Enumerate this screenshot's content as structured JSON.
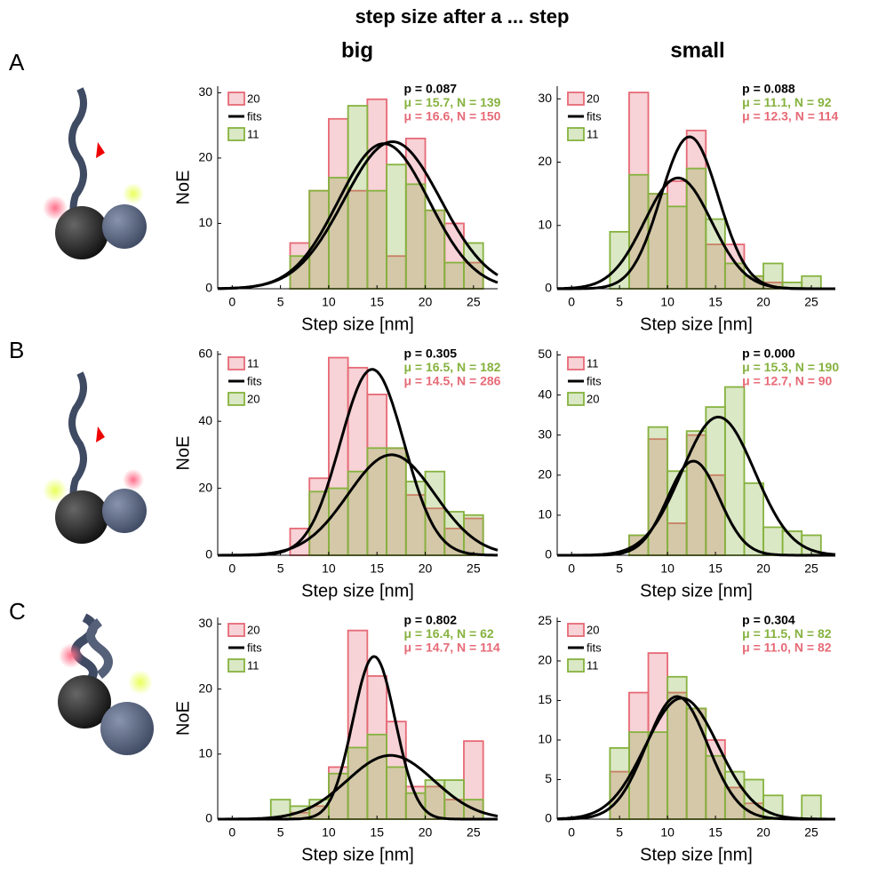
{
  "figure": {
    "title": "step size after a ... step",
    "columns": [
      "big",
      "small"
    ],
    "panels": [
      "A",
      "B",
      "C"
    ]
  },
  "chart_data": [
    {
      "type": "histogram",
      "xlabel": "Step size [nm]",
      "ylabel": "NoE",
      "bins": [
        4,
        6,
        8,
        10,
        12,
        14,
        16,
        18,
        20,
        22,
        24,
        26
      ],
      "xlim": [
        -1.5,
        27.5
      ],
      "xticks": [
        0,
        5,
        10,
        15,
        20,
        25
      ],
      "ylim": [
        0,
        31
      ],
      "yticks": [
        0,
        10,
        20,
        30
      ],
      "series": [
        {
          "name": "20",
          "color": "#e66a76",
          "values": [
            0,
            7,
            15,
            26,
            15,
            29,
            5,
            23,
            12,
            10,
            4
          ]
        },
        {
          "name": "11",
          "color": "#86b23f",
          "values": [
            0,
            5,
            15,
            17,
            28,
            15,
            19,
            16,
            12,
            4,
            7
          ]
        }
      ],
      "fit_label": "fits",
      "fit_color": "#000000",
      "fits": [
        {
          "peak": 22.5,
          "mean": 16.6,
          "sd": 5.0
        },
        {
          "peak": 22.2,
          "mean": 15.7,
          "sd": 4.7
        }
      ],
      "annotations": [
        {
          "text": "p = 0.087",
          "color": "#000000"
        },
        {
          "text": "μ = 15.7, N = 139",
          "color": "#86b23f"
        },
        {
          "text": "μ = 16.6, N = 150",
          "color": "#e66a76"
        }
      ]
    },
    {
      "type": "histogram",
      "xlabel": "Step size [nm]",
      "bins": [
        4,
        6,
        8,
        10,
        12,
        14,
        16,
        18,
        20,
        22,
        24,
        26
      ],
      "xlim": [
        -1.5,
        27.5
      ],
      "xticks": [
        0,
        5,
        10,
        15,
        20,
        25
      ],
      "ylim": [
        0,
        32
      ],
      "yticks": [
        0,
        10,
        20,
        30
      ],
      "series": [
        {
          "name": "20",
          "color": "#e66a76",
          "values": [
            0,
            31,
            15,
            17,
            25,
            7,
            7,
            2,
            1,
            0,
            0
          ]
        },
        {
          "name": "11",
          "color": "#86b23f",
          "values": [
            9,
            18,
            15,
            13,
            19,
            11,
            4,
            2,
            4,
            1,
            2
          ]
        }
      ],
      "fit_label": "fits",
      "fit_color": "#000000",
      "fits": [
        {
          "peak": 24,
          "mean": 12.3,
          "sd": 3.0
        },
        {
          "peak": 17.5,
          "mean": 11.1,
          "sd": 3.5
        }
      ],
      "annotations": [
        {
          "text": "p = 0.088",
          "color": "#000000"
        },
        {
          "text": "μ = 11.1, N = 92",
          "color": "#86b23f"
        },
        {
          "text": "μ = 12.3, N = 114",
          "color": "#e66a76"
        }
      ]
    },
    {
      "type": "histogram",
      "xlabel": "Step size [nm]",
      "ylabel": "NoE",
      "bins": [
        4,
        6,
        8,
        10,
        12,
        14,
        16,
        18,
        20,
        22,
        24,
        26
      ],
      "xlim": [
        -1.5,
        27.5
      ],
      "xticks": [
        0,
        5,
        10,
        15,
        20,
        25
      ],
      "ylim": [
        0,
        61
      ],
      "yticks": [
        0,
        20,
        40,
        60
      ],
      "series": [
        {
          "name": "11",
          "color": "#e66a76",
          "values": [
            0,
            8,
            23,
            59,
            56,
            48,
            32,
            18,
            14,
            8,
            11
          ]
        },
        {
          "name": "20",
          "color": "#86b23f",
          "values": [
            0,
            0,
            19,
            20,
            25,
            32,
            32,
            22,
            25,
            13,
            12
          ]
        }
      ],
      "fit_label": "fits",
      "fit_color": "#000000",
      "fits": [
        {
          "peak": 55.5,
          "mean": 14.5,
          "sd": 3.3
        },
        {
          "peak": 30,
          "mean": 16.5,
          "sd": 4.5
        }
      ],
      "annotations": [
        {
          "text": "p = 0.305",
          "color": "#000000"
        },
        {
          "text": "μ = 16.5, N = 182",
          "color": "#86b23f"
        },
        {
          "text": "μ = 14.5, N = 286",
          "color": "#e66a76"
        }
      ]
    },
    {
      "type": "histogram",
      "xlabel": "Step size [nm]",
      "bins": [
        4,
        6,
        8,
        10,
        12,
        14,
        16,
        18,
        20,
        22,
        24,
        26
      ],
      "xlim": [
        -1.5,
        27.5
      ],
      "xticks": [
        0,
        5,
        10,
        15,
        20,
        25
      ],
      "ylim": [
        0,
        51
      ],
      "yticks": [
        0,
        10,
        20,
        30,
        40,
        50
      ],
      "series": [
        {
          "name": "11",
          "color": "#e66a76",
          "values": [
            0,
            5,
            29,
            8,
            30,
            20,
            0,
            0,
            0,
            0,
            0
          ]
        },
        {
          "name": "20",
          "color": "#86b23f",
          "values": [
            0,
            5,
            32,
            21,
            31,
            37,
            42,
            18,
            7,
            6,
            5
          ]
        }
      ],
      "fit_label": "fits",
      "fit_color": "#000000",
      "fits": [
        {
          "peak": 34.5,
          "mean": 15.3,
          "sd": 3.8
        },
        {
          "peak": 23.5,
          "mean": 12.7,
          "sd": 2.7
        }
      ],
      "annotations": [
        {
          "text": "p = 0.000",
          "color": "#000000"
        },
        {
          "text": "μ = 15.3, N = 190",
          "color": "#86b23f"
        },
        {
          "text": "μ = 12.7, N = 90",
          "color": "#e66a76"
        }
      ]
    },
    {
      "type": "histogram",
      "xlabel": "Step size [nm]",
      "ylabel": "NoE",
      "bins": [
        4,
        6,
        8,
        10,
        12,
        14,
        16,
        18,
        20,
        22,
        24,
        26
      ],
      "xlim": [
        -1.5,
        27.5
      ],
      "xticks": [
        0,
        5,
        10,
        15,
        20,
        25
      ],
      "ylim": [
        0,
        31
      ],
      "yticks": [
        0,
        10,
        20,
        30
      ],
      "series": [
        {
          "name": "20",
          "color": "#e66a76",
          "values": [
            0,
            1,
            2,
            8,
            29,
            22,
            15,
            5,
            5,
            3,
            12
          ]
        },
        {
          "name": "11",
          "color": "#86b23f",
          "values": [
            3,
            2,
            3,
            7,
            11,
            13,
            8,
            4,
            6,
            6,
            3
          ]
        }
      ],
      "fit_label": "fits",
      "fit_color": "#000000",
      "fits": [
        {
          "peak": 25,
          "mean": 14.7,
          "sd": 2.2
        },
        {
          "peak": 9.8,
          "mean": 16.4,
          "sd": 4.5
        }
      ],
      "annotations": [
        {
          "text": "p = 0.802",
          "color": "#000000"
        },
        {
          "text": "μ = 16.4, N = 62",
          "color": "#86b23f"
        },
        {
          "text": "μ = 14.7, N = 114",
          "color": "#e66a76"
        }
      ]
    },
    {
      "type": "histogram",
      "xlabel": "Step size [nm]",
      "bins": [
        4,
        6,
        8,
        10,
        12,
        14,
        16,
        18,
        20,
        22,
        24,
        26
      ],
      "xlim": [
        -1.5,
        27.5
      ],
      "xticks": [
        0,
        5,
        10,
        15,
        20,
        25
      ],
      "ylim": [
        0,
        25.5
      ],
      "yticks": [
        0,
        5,
        10,
        15,
        20,
        25
      ],
      "series": [
        {
          "name": "20",
          "color": "#e66a76",
          "values": [
            6,
            16,
            21,
            16,
            14,
            10,
            4,
            2,
            0,
            0,
            0
          ]
        },
        {
          "name": "11",
          "color": "#86b23f",
          "values": [
            9,
            11,
            11,
            18,
            14,
            8,
            6,
            5,
            3,
            0,
            3
          ]
        }
      ],
      "fit_label": "fits",
      "fit_color": "#000000",
      "fits": [
        {
          "peak": 15.3,
          "mean": 11.5,
          "sd": 3.8
        },
        {
          "peak": 15.5,
          "mean": 11.0,
          "sd": 3.2
        }
      ],
      "annotations": [
        {
          "text": "p = 0.304",
          "color": "#000000"
        },
        {
          "text": "μ = 11.5, N = 82",
          "color": "#86b23f"
        },
        {
          "text": "μ = 11.0, N = 82",
          "color": "#e66a76"
        }
      ]
    }
  ]
}
